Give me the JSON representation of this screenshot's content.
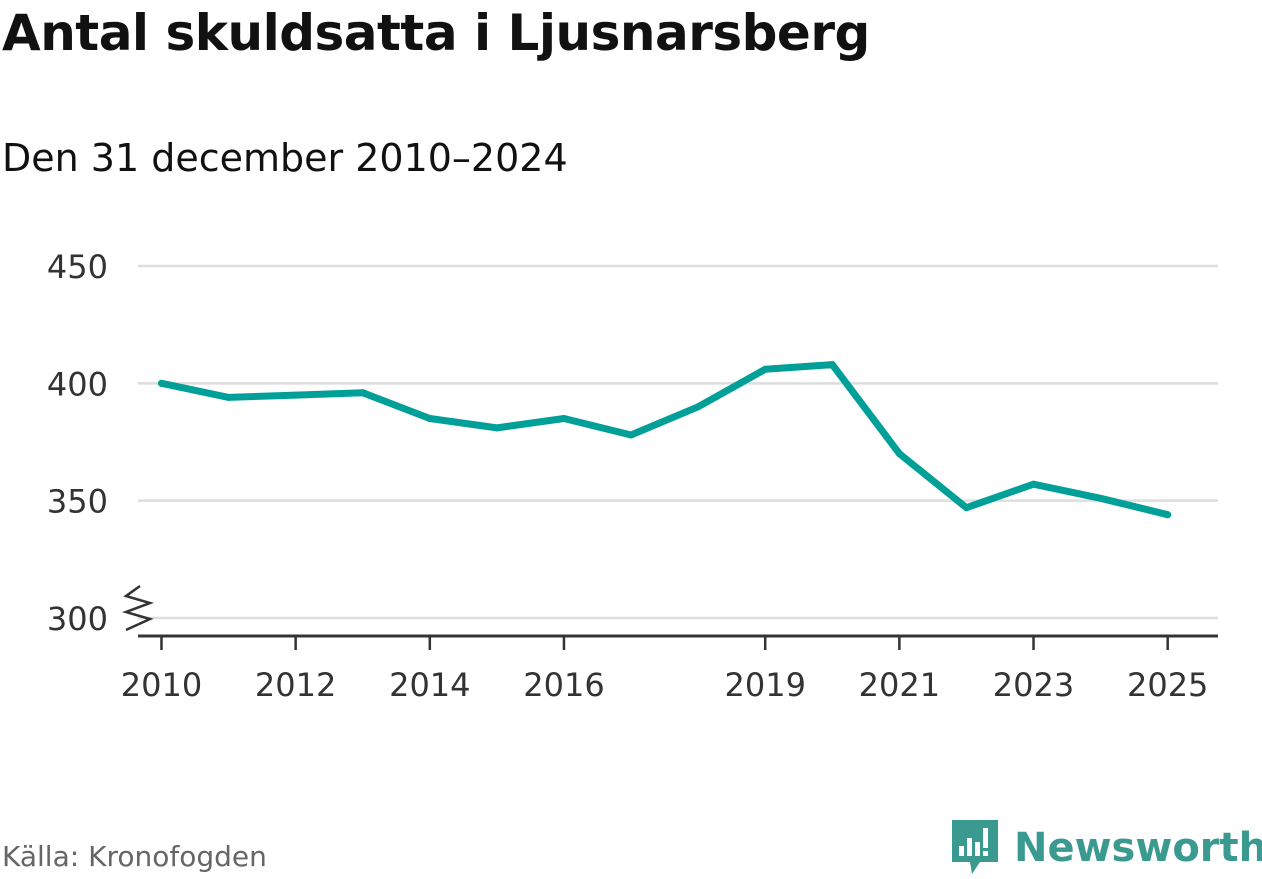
{
  "title": "Antal skuldsatta i Ljusnarsberg",
  "subtitle": "Den 31 december 2010–2024",
  "source": "Källa: Kronofogden",
  "brand": {
    "name": "Newsworthy",
    "logo_icon": "chart-bubble-icon",
    "color": "#3a9a8f"
  },
  "colors": {
    "line": "#00a099",
    "grid": "#dddddd",
    "axis": "#333333",
    "tick_text": "#333333"
  },
  "chart_data": {
    "type": "line",
    "title": "Antal skuldsatta i Ljusnarsberg",
    "subtitle": "Den 31 december 2010–2024",
    "xlabel": "",
    "ylabel": "",
    "ylim": [
      300,
      450
    ],
    "xlim": [
      2009.65,
      2025.75
    ],
    "y_axis_break": true,
    "grid": true,
    "x_ticks": [
      2010,
      2012,
      2014,
      2016,
      2019,
      2021,
      2023,
      2025
    ],
    "y_ticks": [
      300,
      350,
      400,
      450
    ],
    "series": [
      {
        "name": "Antal skuldsatta",
        "x": [
          2010,
          2011,
          2012,
          2013,
          2014,
          2015,
          2016,
          2017,
          2018,
          2019,
          2020,
          2021,
          2022,
          2023,
          2024,
          2025
        ],
        "values": [
          400,
          394,
          395,
          396,
          385,
          381,
          385,
          378,
          390,
          406,
          408,
          370,
          347,
          357,
          351,
          344
        ]
      }
    ]
  }
}
